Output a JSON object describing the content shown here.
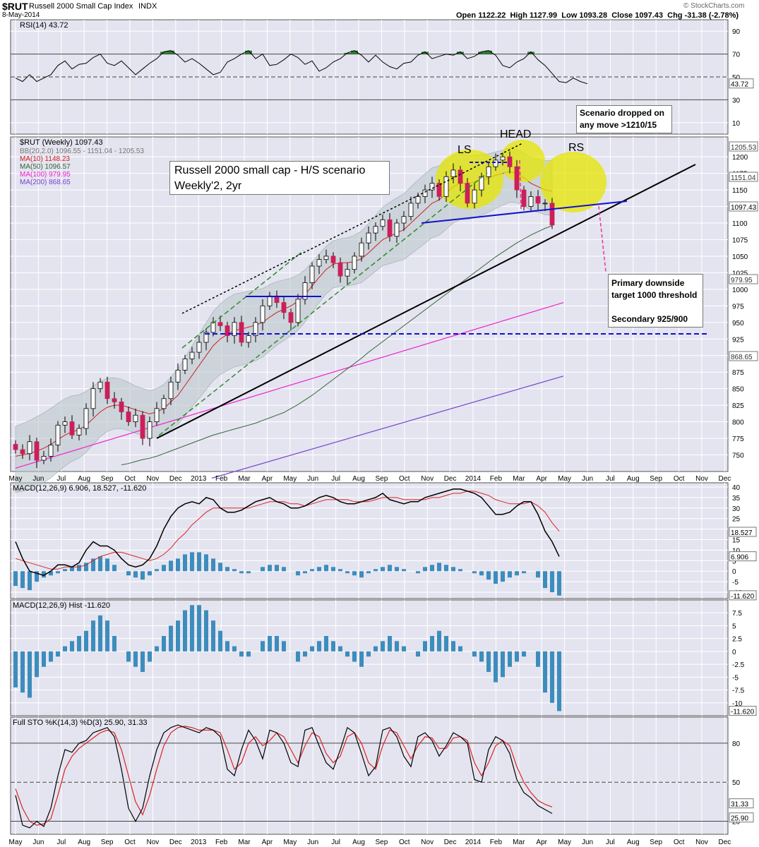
{
  "header": {
    "symbol": "$RUT",
    "name": "Russell 2000 Small Cap Index",
    "exchange": "INDX",
    "date": "8-May-2014",
    "open_label": "Open",
    "open": "1122.22",
    "high_label": "High",
    "high": "1127.99",
    "low_label": "Low",
    "low": "1093.28",
    "close_label": "Close",
    "close": "1097.43",
    "chg_label": "Chg",
    "chg": "-31.38 (-2.78%)",
    "watermark": "© StockCharts.com"
  },
  "annotations": {
    "title_line1": "Russell 2000 small cap - H/S scenario",
    "title_line2": "Weekly'2, 2yr",
    "scenario_line1": "Scenario dropped on",
    "scenario_line2": "any move >1210/15",
    "target_line1": "Primary downside",
    "target_line2": "target 1000 threshold",
    "target_line3": "Secondary 925/900",
    "ls": "LS",
    "head": "HEAD",
    "rs": "RS"
  },
  "colors": {
    "panel_bg": "#e4e4f0",
    "grid": "#ffffff",
    "candle_up": "#ffffff",
    "candle_down": "#cc1f5a",
    "ma10": "#cc2222",
    "ma50": "#336633",
    "ma100": "#ee22cc",
    "ma200": "#7744cc",
    "bb_fill": "#b8c4c8",
    "hist": "#3d8dbc",
    "highlight": "#e6e600",
    "trend_blue": "#1111cc",
    "pink": "#ee3399"
  },
  "chart_data": [
    {
      "type": "line",
      "title": "RSI(14) 43.72",
      "series": [
        {
          "name": "RSI(14)",
          "values": [
            49,
            46,
            52,
            46,
            49,
            52,
            60,
            64,
            57,
            61,
            62,
            67,
            70,
            62,
            60,
            64,
            58,
            52,
            57,
            62,
            66,
            72,
            73,
            69,
            63,
            66,
            62,
            57,
            52,
            54,
            63,
            66,
            70,
            73,
            66,
            70,
            60,
            61,
            65,
            70,
            67,
            61,
            64,
            55,
            58,
            63,
            66,
            71,
            73,
            69,
            63,
            69,
            63,
            59,
            57,
            62,
            63,
            69,
            72,
            66,
            68,
            70,
            69,
            72,
            66,
            68,
            72,
            73,
            69,
            60,
            58,
            63,
            66,
            72,
            65,
            60,
            53,
            46,
            45,
            49,
            46,
            44
          ]
        }
      ],
      "yticks": [
        10,
        30,
        50,
        70,
        90
      ],
      "ylim": [
        0,
        100
      ],
      "ref_lines": [
        30,
        50,
        70
      ],
      "last_label": "43.72"
    },
    {
      "type": "candlestick",
      "title": "$RUT (Weekly) 1097.43",
      "legend": [
        {
          "name": "BB(20,2.0) 1096.55 - 1151.04 - 1205.53"
        },
        {
          "name": "MA(10) 1148.23"
        },
        {
          "name": "MA(50) 1096.57"
        },
        {
          "name": "MA(100) 979.95"
        },
        {
          "name": "MA(200) 868.65"
        }
      ],
      "close": [
        758,
        752,
        770,
        742,
        748,
        765,
        795,
        800,
        780,
        790,
        820,
        850,
        860,
        835,
        830,
        815,
        800,
        810,
        775,
        800,
        820,
        835,
        860,
        878,
        895,
        905,
        920,
        935,
        950,
        945,
        930,
        950,
        920,
        930,
        950,
        975,
        990,
        980,
        965,
        950,
        985,
        1010,
        1035,
        1045,
        1050,
        1040,
        1020,
        1030,
        1050,
        1070,
        1085,
        1095,
        1105,
        1080,
        1100,
        1110,
        1130,
        1140,
        1150,
        1160,
        1140,
        1170,
        1180,
        1160,
        1130,
        1150,
        1170,
        1185,
        1195,
        1200,
        1185,
        1150,
        1125,
        1140,
        1130,
        1130,
        1097
      ],
      "ma10": [
        748,
        750,
        752,
        756,
        760,
        766,
        773,
        780,
        785,
        788,
        795,
        805,
        815,
        822,
        825,
        825,
        822,
        818,
        815,
        812,
        815,
        820,
        830,
        840,
        855,
        870,
        885,
        900,
        915,
        925,
        932,
        938,
        940,
        943,
        946,
        950,
        958,
        965,
        970,
        975,
        982,
        992,
        1005,
        1018,
        1030,
        1038,
        1040,
        1040,
        1042,
        1046,
        1055,
        1065,
        1075,
        1080,
        1085,
        1090,
        1100,
        1110,
        1120,
        1130,
        1135,
        1145,
        1155,
        1160,
        1160,
        1162,
        1165,
        1168,
        1172,
        1175,
        1178,
        1175,
        1168,
        1160,
        1155,
        1150,
        1148
      ],
      "ma50": [
        735,
        737,
        740,
        743,
        745,
        748,
        752,
        756,
        760,
        764,
        768,
        772,
        776,
        780,
        783,
        786,
        789,
        792,
        795,
        798,
        802,
        806,
        810,
        814,
        820,
        826,
        833,
        840,
        848,
        856,
        864,
        872,
        880,
        888,
        896,
        905,
        913,
        921,
        929,
        937,
        945,
        953,
        961,
        969,
        977,
        985,
        993,
        1001,
        1009,
        1017,
        1025,
        1033,
        1041,
        1049,
        1056,
        1063,
        1070,
        1076,
        1082,
        1087,
        1092,
        1096
      ],
      "ma100_range": [
        755,
        980
      ],
      "ma200_range": [
        715,
        869
      ],
      "ylim": [
        725,
        1230
      ],
      "yticks": [
        750,
        775,
        800,
        825,
        850,
        875,
        900,
        925,
        950,
        975,
        1000,
        1025,
        1050,
        1075,
        1100,
        1125,
        1150,
        1175,
        1200
      ],
      "price_labels": [
        "1205.53",
        "1151.04",
        "1097.43",
        "979.95",
        "868.65"
      ],
      "support_level": 900
    },
    {
      "type": "line",
      "title": "MACD(12,26,9) 6.906, 18.527, -11.620",
      "series": [
        {
          "name": "MACD(12,26,9)",
          "values": [
            14,
            6,
            0,
            -1,
            -2,
            0,
            3,
            3,
            2,
            4,
            10,
            14,
            12,
            12,
            10,
            6,
            3,
            2,
            3,
            6,
            12,
            20,
            26,
            30,
            32,
            33,
            32,
            35,
            34,
            30,
            28,
            28,
            29,
            31,
            33,
            34,
            35,
            33,
            32,
            30,
            30,
            31,
            33,
            35,
            36,
            35,
            33,
            32,
            32,
            33,
            34,
            35,
            37,
            34,
            33,
            32,
            33,
            33,
            35,
            36,
            37,
            38,
            39,
            39,
            38,
            37,
            35,
            31,
            27,
            27,
            28,
            31,
            33,
            33,
            27,
            19,
            14,
            7
          ]
        },
        {
          "name": "signal",
          "values": [
            6,
            5,
            4,
            3,
            2,
            1,
            1,
            2,
            2,
            2,
            3,
            5,
            7,
            8,
            9,
            9,
            8,
            7,
            6,
            5,
            6,
            8,
            11,
            15,
            18,
            22,
            25,
            28,
            30,
            30,
            30,
            30,
            30,
            30,
            31,
            32,
            33,
            33,
            33,
            32,
            32,
            31,
            32,
            33,
            34,
            34,
            34,
            34,
            33,
            33,
            33,
            34,
            35,
            35,
            35,
            34,
            34,
            34,
            34,
            35,
            35,
            36,
            37,
            37,
            38,
            38,
            37,
            36,
            34,
            33,
            32,
            32,
            32,
            33,
            31,
            28,
            23,
            19
          ]
        }
      ],
      "yticks": [
        -10,
        -5,
        0,
        5,
        10,
        15,
        20,
        25,
        30,
        35,
        40
      ],
      "ylim": [
        -13,
        42
      ],
      "value_labels": [
        "18.527",
        "6.906",
        "-11.620"
      ]
    },
    {
      "type": "bar",
      "title": "MACD(12,26,9) Hist -11.620",
      "values": [
        -7,
        -8,
        -9,
        -5,
        -3,
        -2,
        -1,
        1,
        2,
        3,
        4,
        6,
        7,
        6,
        3,
        0,
        -2,
        -3,
        -4,
        -2,
        1,
        3,
        5,
        6,
        8,
        9,
        9,
        8,
        6,
        4,
        2,
        1,
        -1,
        -1,
        0,
        2,
        3,
        3,
        2,
        0,
        -2,
        -1,
        1,
        2,
        3,
        2,
        1,
        -1,
        -2,
        -3,
        -1,
        1,
        2,
        3,
        2,
        1,
        0,
        -1,
        2,
        3,
        4,
        3,
        2,
        1,
        0,
        -1,
        -2,
        -4,
        -6,
        -5,
        -3,
        -2,
        -1,
        0,
        -3,
        -8,
        -10,
        -11.6
      ],
      "yticks": [
        -10,
        -7.5,
        -5,
        -2.5,
        0,
        2.5,
        5,
        7.5
      ],
      "ylim": [
        -12.5,
        10
      ]
    },
    {
      "type": "line",
      "title": "Full STO %K(14,3) %D(3) 25.90, 31.33",
      "series": [
        {
          "name": "%K(14,3)",
          "values": [
            40,
            17,
            15,
            20,
            16,
            30,
            55,
            75,
            73,
            80,
            82,
            88,
            90,
            92,
            85,
            60,
            30,
            20,
            30,
            55,
            75,
            88,
            92,
            94,
            92,
            90,
            88,
            92,
            90,
            85,
            60,
            55,
            75,
            90,
            82,
            68,
            90,
            88,
            80,
            65,
            62,
            90,
            92,
            78,
            65,
            60,
            75,
            92,
            88,
            72,
            55,
            62,
            90,
            92,
            85,
            70,
            62,
            85,
            88,
            82,
            70,
            78,
            88,
            85,
            80,
            52,
            50,
            75,
            85,
            82,
            72,
            52,
            42,
            38,
            32,
            29,
            26
          ]
        },
        {
          "name": "%D(3)",
          "values": [
            45,
            30,
            20,
            17,
            18,
            22,
            40,
            60,
            70,
            76,
            80,
            84,
            88,
            90,
            88,
            75,
            55,
            35,
            25,
            40,
            60,
            78,
            88,
            92,
            93,
            92,
            90,
            90,
            90,
            88,
            75,
            60,
            65,
            80,
            85,
            78,
            82,
            88,
            85,
            75,
            65,
            78,
            88,
            85,
            72,
            65,
            70,
            85,
            88,
            80,
            65,
            60,
            78,
            90,
            88,
            78,
            68,
            78,
            85,
            84,
            76,
            76,
            84,
            85,
            82,
            65,
            55,
            65,
            78,
            82,
            78,
            62,
            50,
            42,
            36,
            33,
            31
          ]
        }
      ],
      "yticks": [
        20,
        50,
        80
      ],
      "ylim": [
        10,
        100
      ],
      "ref_lines": [
        20,
        50,
        80
      ],
      "value_labels": [
        "31.33",
        "25.90"
      ]
    }
  ],
  "x_axis": {
    "labels": [
      "May",
      "Jun",
      "Jul",
      "Aug",
      "Sep",
      "Oct",
      "Nov",
      "Dec",
      "2013",
      "Feb",
      "Mar",
      "Apr",
      "May",
      "Jun",
      "Jul",
      "Aug",
      "Sep",
      "Oct",
      "Nov",
      "Dec",
      "2014",
      "Feb",
      "Mar",
      "Apr",
      "May",
      "Jun",
      "Jul",
      "Aug",
      "Sep",
      "Oct",
      "Nov",
      "Dec"
    ]
  }
}
